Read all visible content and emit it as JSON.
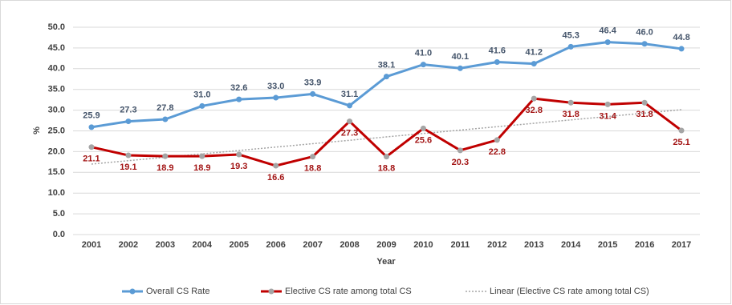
{
  "chart_data": {
    "type": "line",
    "xlabel": "Year",
    "ylabel": "%",
    "categories": [
      "2001",
      "2002",
      "2003",
      "2004",
      "2005",
      "2006",
      "2007",
      "2008",
      "2009",
      "2010",
      "2011",
      "2012",
      "2013",
      "2014",
      "2015",
      "2016",
      "2017"
    ],
    "series": [
      {
        "name": "Overall CS Rate",
        "color": "#5b9bd5",
        "marker_color": "#5b9bd5",
        "values": [
          25.9,
          27.3,
          27.8,
          31.0,
          32.6,
          33.0,
          33.9,
          31.1,
          38.1,
          41.0,
          40.1,
          41.6,
          41.2,
          45.3,
          46.4,
          46.0,
          44.8
        ],
        "value_labels": [
          "25.9",
          "27.3",
          "27.8",
          "31.0",
          "32.6",
          "33.0",
          "33.9",
          "31.1",
          "38.1",
          "41.0",
          "40.1",
          "41.6",
          "41.2",
          "45.3",
          "46.4",
          "46.0",
          "44.8"
        ]
      },
      {
        "name": "Elective CS rate among total CS",
        "color": "#c00000",
        "marker_color": "#a5a5a5",
        "values": [
          21.1,
          19.1,
          18.9,
          18.9,
          19.3,
          16.6,
          18.8,
          27.3,
          18.8,
          25.6,
          20.3,
          22.8,
          32.8,
          31.8,
          31.4,
          31.8,
          25.1
        ],
        "trendline": {
          "name": "Linear (Elective CS rate among total CS)",
          "color": "#a5a5a5"
        }
      }
    ],
    "ylim": [
      0,
      50
    ],
    "yticks": [
      {
        "value": 0,
        "label": "0.0"
      },
      {
        "value": 5,
        "label": "5.0"
      },
      {
        "value": 10,
        "label": "10.0"
      },
      {
        "value": 15,
        "label": "15.0"
      },
      {
        "value": 20,
        "label": "20.0"
      },
      {
        "value": 25,
        "label": "25.0"
      },
      {
        "value": 30,
        "label": "30.0"
      },
      {
        "value": 35,
        "label": "35.0"
      },
      {
        "value": 40,
        "label": "40.0"
      },
      {
        "value": 45,
        "label": "45.0"
      },
      {
        "value": 50,
        "label": "50.0"
      }
    ],
    "grid": true,
    "legend": "bottom"
  }
}
